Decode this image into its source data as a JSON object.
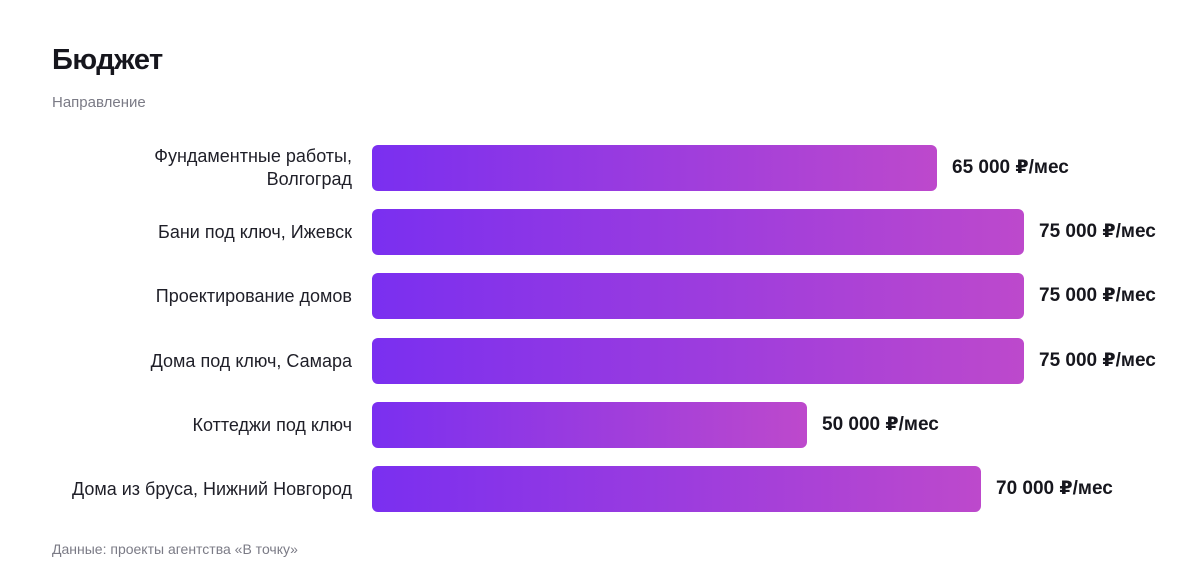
{
  "header": {
    "title": "Бюджет",
    "subtitle": "Направление"
  },
  "footer": {
    "note": "Данные: проекты агентства «В точку»"
  },
  "chart_data": {
    "type": "bar",
    "orientation": "horizontal",
    "title": "Бюджет",
    "subtitle": "Направление",
    "unit": "₽/мес",
    "categories": [
      [
        "Фундаментные работы,",
        "Волгоград"
      ],
      [
        "Бани под ключ, Ижевск"
      ],
      [
        "Проектирование домов"
      ],
      [
        "Дома под ключ, Самара"
      ],
      [
        "Коттеджи под ключ"
      ],
      [
        "Дома из бруса, Нижний Новгород"
      ]
    ],
    "values": [
      65000,
      75000,
      75000,
      75000,
      50000,
      70000
    ],
    "value_labels": [
      "65 000 ₽/мес",
      "75 000 ₽/мес",
      "75 000 ₽/мес",
      "75 000 ₽/мес",
      "50 000 ₽/мес",
      "70 000 ₽/мес"
    ],
    "xlim": [
      0,
      75000
    ],
    "grid": false,
    "legend": "none",
    "colors": {
      "gradient_start": "#7a2ff0",
      "gradient_end": "#bd49cc"
    }
  }
}
